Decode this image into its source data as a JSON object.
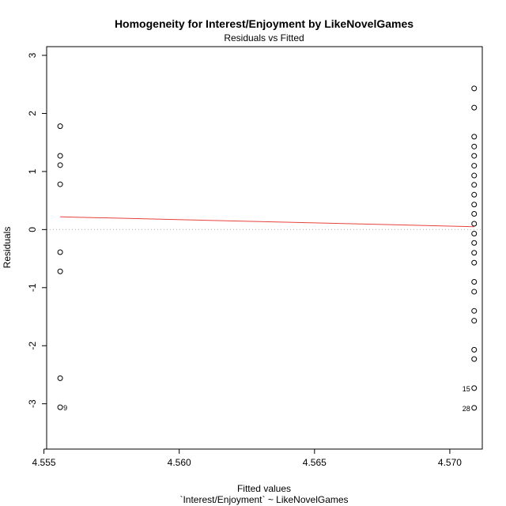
{
  "chart_data": {
    "type": "scatter",
    "title": "Homogeneity for Interest/Enjoyment by LikeNovelGames",
    "subtitle": "Residuals vs Fitted",
    "xlabel": "Fitted values",
    "xlabel_sub": "`Interest/Enjoyment` ~ LikeNovelGames",
    "ylabel": "Residuals",
    "xlim": [
      4.5551,
      4.5712
    ],
    "ylim": [
      -3.78,
      3.15
    ],
    "x_ticks": [
      4.555,
      4.56,
      4.565,
      4.57
    ],
    "x_tick_labels": [
      "4.555",
      "4.560",
      "4.565",
      "4.570"
    ],
    "y_ticks": [
      -3,
      -2,
      -1,
      0,
      1,
      2,
      3
    ],
    "y_tick_labels": [
      "-3",
      "-2",
      "-1",
      "0",
      "1",
      "2",
      "3"
    ],
    "grid": false,
    "reference_line_y": 0,
    "colors": {
      "smooth": "#e8413c",
      "reference": "#b3b3b3",
      "points": "#000000"
    },
    "series": [
      {
        "x": 4.5556,
        "y": [
          1.78,
          1.27,
          1.11,
          0.78,
          -0.39,
          -0.72,
          -2.56,
          -3.06
        ]
      },
      {
        "x": 4.5709,
        "y": [
          2.43,
          2.1,
          1.6,
          1.43,
          1.27,
          1.1,
          0.93,
          0.77,
          0.6,
          0.43,
          0.27,
          0.1,
          -0.07,
          -0.23,
          -0.4,
          -0.57,
          -0.9,
          -1.07,
          -1.4,
          -1.57,
          -2.07,
          -2.23,
          -2.73,
          -3.07
        ]
      }
    ],
    "smooth_line": {
      "x": [
        4.5556,
        4.5709
      ],
      "y": [
        0.22,
        0.05
      ]
    },
    "point_labels": [
      {
        "text": "9",
        "x": 4.5556,
        "y": -3.06,
        "side": "right"
      },
      {
        "text": "15",
        "x": 4.5709,
        "y": -2.73,
        "side": "left"
      },
      {
        "text": "28",
        "x": 4.5709,
        "y": -3.07,
        "side": "left"
      }
    ]
  }
}
